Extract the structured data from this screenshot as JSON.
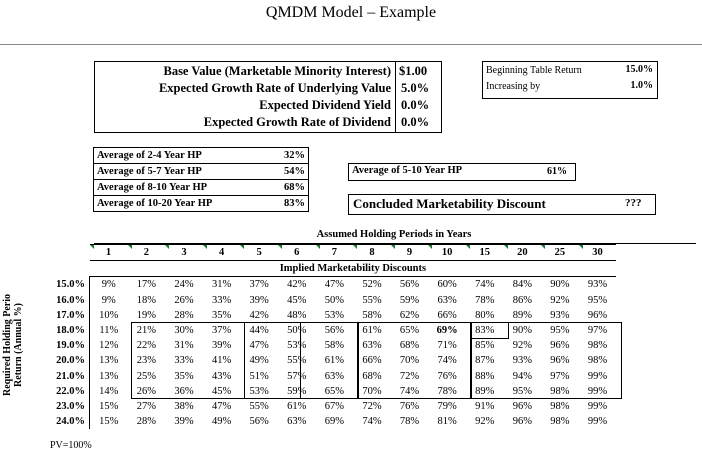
{
  "title": "QMDM Model – Example",
  "inputs": {
    "base_value_label": "Base Value (Marketable Minority Interest)",
    "base_value": "$1.00",
    "growth_underlying_label": "Expected Growth Rate of Underlying Value",
    "growth_underlying": "5.0%",
    "dividend_yield_label": "Expected Dividend Yield",
    "dividend_yield": "0.0%",
    "growth_dividend_label": "Expected Growth Rate of Dividend",
    "growth_dividend": "0.0%"
  },
  "table_settings": {
    "beginning_label": "Beginning Table Return",
    "beginning_value": "15.0%",
    "increasing_label": "Increasing by",
    "increasing_value": "1.0%"
  },
  "hp_averages": [
    {
      "label": "Average of 2-4 Year HP",
      "value": "32%"
    },
    {
      "label": "Average of 5-7 Year HP",
      "value": "54%"
    },
    {
      "label": "Average of 8-10 Year HP",
      "value": "68%"
    },
    {
      "label": "Average of 10-20 Year HP",
      "value": "83%"
    }
  ],
  "avg_5_10": {
    "label": "Average of 5-10 Year HP",
    "value": "61%"
  },
  "concluded": {
    "label": "Concluded Marketability Discount",
    "value": "???"
  },
  "grid": {
    "title": "Assumed Holding Periods in Years",
    "subtitle": "Implied Marketability Discounts",
    "years": [
      "1",
      "2",
      "3",
      "4",
      "5",
      "6",
      "7",
      "8",
      "9",
      "10",
      "15",
      "20",
      "25",
      "30"
    ],
    "row_axis_label_1": "Required Holding Perio",
    "row_axis_label_2": "Return (Annual %)",
    "rows": [
      {
        "rate": "15.0%",
        "values": [
          "9%",
          "17%",
          "24%",
          "31%",
          "37%",
          "42%",
          "47%",
          "52%",
          "56%",
          "60%",
          "74%",
          "84%",
          "90%",
          "93%"
        ]
      },
      {
        "rate": "16.0%",
        "values": [
          "9%",
          "18%",
          "26%",
          "33%",
          "39%",
          "45%",
          "50%",
          "55%",
          "59%",
          "63%",
          "78%",
          "86%",
          "92%",
          "95%"
        ]
      },
      {
        "rate": "17.0%",
        "values": [
          "10%",
          "19%",
          "28%",
          "35%",
          "42%",
          "48%",
          "53%",
          "58%",
          "62%",
          "66%",
          "80%",
          "89%",
          "93%",
          "96%"
        ]
      },
      {
        "rate": "18.0%",
        "values": [
          "11%",
          "21%",
          "30%",
          "37%",
          "44%",
          "50%",
          "56%",
          "61%",
          "65%",
          "69%",
          "83%",
          "90%",
          "95%",
          "97%"
        ]
      },
      {
        "rate": "19.0%",
        "values": [
          "12%",
          "22%",
          "31%",
          "39%",
          "47%",
          "53%",
          "58%",
          "63%",
          "68%",
          "71%",
          "85%",
          "92%",
          "96%",
          "98%"
        ]
      },
      {
        "rate": "20.0%",
        "values": [
          "13%",
          "23%",
          "33%",
          "41%",
          "49%",
          "55%",
          "61%",
          "66%",
          "70%",
          "74%",
          "87%",
          "93%",
          "96%",
          "98%"
        ]
      },
      {
        "rate": "21.0%",
        "values": [
          "13%",
          "25%",
          "35%",
          "43%",
          "51%",
          "57%",
          "63%",
          "68%",
          "72%",
          "76%",
          "88%",
          "94%",
          "97%",
          "99%"
        ]
      },
      {
        "rate": "22.0%",
        "values": [
          "14%",
          "26%",
          "36%",
          "45%",
          "53%",
          "59%",
          "65%",
          "70%",
          "74%",
          "78%",
          "89%",
          "95%",
          "98%",
          "99%"
        ]
      },
      {
        "rate": "23.0%",
        "values": [
          "15%",
          "27%",
          "38%",
          "47%",
          "55%",
          "61%",
          "67%",
          "72%",
          "76%",
          "79%",
          "91%",
          "96%",
          "98%",
          "99%"
        ]
      },
      {
        "rate": "24.0%",
        "values": [
          "15%",
          "28%",
          "39%",
          "49%",
          "56%",
          "63%",
          "69%",
          "74%",
          "78%",
          "81%",
          "92%",
          "96%",
          "98%",
          "99%"
        ]
      }
    ]
  },
  "footnote": "PV=100%"
}
